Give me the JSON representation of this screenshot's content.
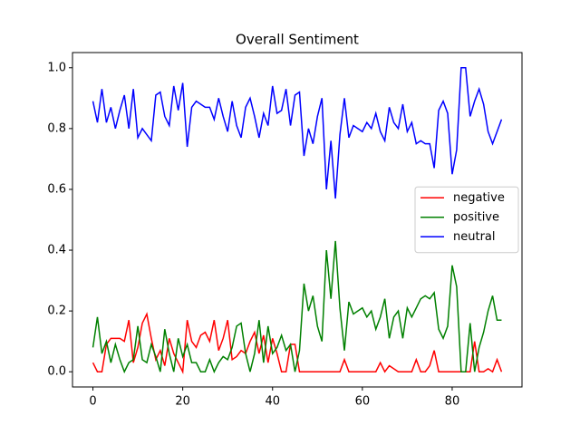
{
  "chart_data": {
    "type": "line",
    "title": "Overall Sentiment",
    "x": [
      0,
      1,
      2,
      3,
      4,
      5,
      6,
      7,
      8,
      9,
      10,
      11,
      12,
      13,
      14,
      15,
      16,
      17,
      18,
      19,
      20,
      21,
      22,
      23,
      24,
      25,
      26,
      27,
      28,
      29,
      30,
      31,
      32,
      33,
      34,
      35,
      36,
      37,
      38,
      39,
      40,
      41,
      42,
      43,
      44,
      45,
      46,
      47,
      48,
      49,
      50,
      51,
      52,
      53,
      54,
      55,
      56,
      57,
      58,
      59,
      60,
      61,
      62,
      63,
      64,
      65,
      66,
      67,
      68,
      69,
      70,
      71,
      72,
      73,
      74,
      75,
      76,
      77,
      78,
      79,
      80,
      81,
      82,
      83,
      84,
      85,
      86,
      87,
      88,
      89,
      90,
      91
    ],
    "series": [
      {
        "name": "negative",
        "color": "#ff0000",
        "values": [
          0.03,
          0,
          0,
          0.09,
          0.11,
          0.11,
          0.11,
          0.1,
          0.17,
          0.03,
          0.08,
          0.16,
          0.19,
          0.11,
          0.04,
          0.07,
          0.02,
          0.11,
          0.06,
          0.03,
          0,
          0.17,
          0.1,
          0.08,
          0.12,
          0.13,
          0.1,
          0.17,
          0.07,
          0.11,
          0.17,
          0.04,
          0.05,
          0.07,
          0.06,
          0.1,
          0.13,
          0.06,
          0.12,
          0.03,
          0.11,
          0.06,
          0,
          0,
          0.09,
          0.09,
          0,
          0,
          0,
          0,
          0,
          0,
          0,
          0,
          0,
          0,
          0.04,
          0,
          0,
          0,
          0,
          0,
          0,
          0,
          0.03,
          0,
          0.02,
          0.01,
          0,
          0,
          0,
          0,
          0.04,
          0,
          0,
          0.02,
          0.07,
          0,
          0,
          0,
          0,
          0,
          0,
          0,
          0,
          0.1,
          0,
          0,
          0.01,
          0,
          0.04,
          0
        ]
      },
      {
        "name": "positive",
        "color": "#008000",
        "values": [
          0.08,
          0.18,
          0.06,
          0.1,
          0.03,
          0.09,
          0.04,
          0,
          0.03,
          0.04,
          0.15,
          0.04,
          0.03,
          0.09,
          0.05,
          0,
          0.14,
          0.06,
          0,
          0.11,
          0.05,
          0.09,
          0.03,
          0.03,
          0,
          0,
          0.04,
          0,
          0.03,
          0.05,
          0.04,
          0.08,
          0.15,
          0.16,
          0.06,
          0,
          0.06,
          0.17,
          0.03,
          0.15,
          0.06,
          0.08,
          0.12,
          0.07,
          0.09,
          0,
          0.07,
          0.29,
          0.2,
          0.25,
          0.15,
          0.1,
          0.4,
          0.24,
          0.43,
          0.21,
          0.07,
          0.23,
          0.19,
          0.2,
          0.21,
          0.18,
          0.2,
          0.14,
          0.18,
          0.24,
          0.11,
          0.18,
          0.2,
          0.11,
          0.21,
          0.18,
          0.21,
          0.24,
          0.25,
          0.24,
          0.26,
          0.14,
          0.11,
          0.15,
          0.35,
          0.28,
          0,
          0,
          0.16,
          0,
          0.08,
          0.13,
          0.2,
          0.25,
          0.17,
          0.17
        ]
      },
      {
        "name": "neutral",
        "color": "#0000ff",
        "values": [
          0.89,
          0.82,
          0.93,
          0.82,
          0.87,
          0.8,
          0.86,
          0.91,
          0.8,
          0.93,
          0.77,
          0.8,
          0.78,
          0.76,
          0.91,
          0.92,
          0.84,
          0.81,
          0.94,
          0.86,
          0.95,
          0.74,
          0.87,
          0.89,
          0.88,
          0.87,
          0.87,
          0.83,
          0.9,
          0.84,
          0.79,
          0.89,
          0.81,
          0.77,
          0.87,
          0.9,
          0.84,
          0.77,
          0.85,
          0.81,
          0.94,
          0.85,
          0.86,
          0.93,
          0.81,
          0.91,
          0.92,
          0.71,
          0.8,
          0.75,
          0.84,
          0.9,
          0.6,
          0.76,
          0.57,
          0.78,
          0.9,
          0.77,
          0.81,
          0.8,
          0.79,
          0.82,
          0.8,
          0.85,
          0.79,
          0.76,
          0.87,
          0.82,
          0.8,
          0.88,
          0.79,
          0.82,
          0.75,
          0.76,
          0.75,
          0.75,
          0.67,
          0.86,
          0.89,
          0.85,
          0.65,
          0.73,
          1,
          1,
          0.84,
          0.89,
          0.93,
          0.88,
          0.79,
          0.75,
          0.79,
          0.83
        ]
      }
    ],
    "xlim": [
      -4.55,
      95.55
    ],
    "xticks": [
      0,
      20,
      40,
      60,
      80
    ],
    "ylim": [
      -0.05,
      1.05
    ],
    "yticks": [
      {
        "value": 0,
        "label": "0.0"
      },
      0.2,
      0.4,
      0.6,
      0.8,
      {
        "value": 1,
        "label": "1.0"
      }
    ],
    "legend": "center right"
  }
}
